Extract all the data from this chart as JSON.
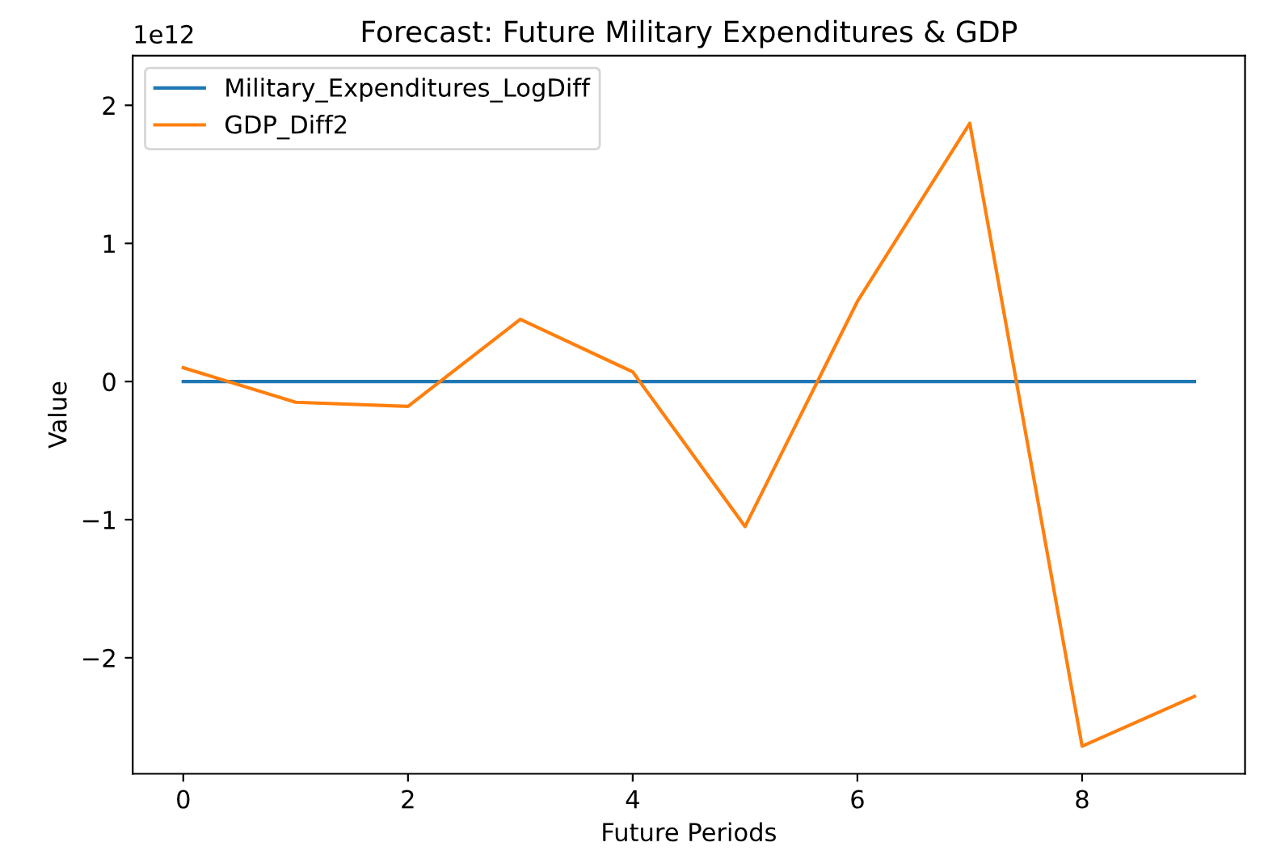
{
  "chart_data": {
    "type": "line",
    "title": "Forecast: Future Military Expenditures & GDP",
    "xlabel": "Future Periods",
    "ylabel": "Value",
    "annotations": [
      "1e12"
    ],
    "x": [
      0,
      1,
      2,
      3,
      4,
      5,
      6,
      7,
      8,
      9
    ],
    "series": [
      {
        "name": "Military_Expenditures_LogDiff",
        "color": "#1f77b4",
        "values": [
          0,
          0,
          0,
          0,
          0,
          0,
          0,
          0,
          0,
          0
        ]
      },
      {
        "name": "GDP_Diff2",
        "color": "#ff7f0e",
        "values": [
          0.1,
          -0.15,
          -0.18,
          0.45,
          0.07,
          -1.05,
          0.58,
          1.87,
          -2.64,
          -2.28
        ]
      }
    ],
    "xlim": [
      -0.45,
      9.45
    ],
    "xticks": [
      0,
      2,
      4,
      6,
      8
    ],
    "ylim": [
      -2.84,
      2.36
    ],
    "yticks": [
      {
        "value": -2,
        "label": "−2"
      },
      {
        "value": -1,
        "label": "−1"
      },
      0,
      1,
      2
    ],
    "legend": "top left",
    "grid": false
  }
}
